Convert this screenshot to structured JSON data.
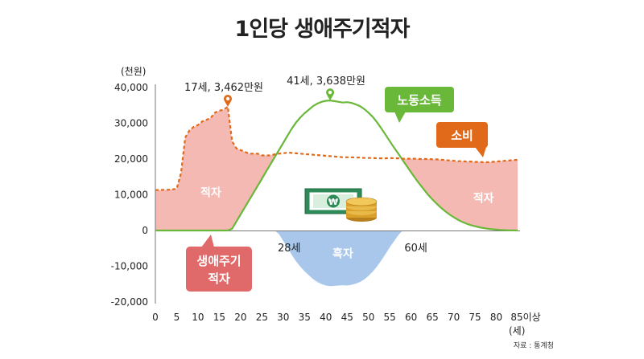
{
  "title": "1인당 생애주기적자",
  "chart_data": {
    "type": "line",
    "title": "1인당 생애주기적자",
    "y_unit_label": "(천원)",
    "x_unit_label": "(세)",
    "x_ticks": [
      "0",
      "5",
      "10",
      "15",
      "20",
      "25",
      "30",
      "35",
      "40",
      "45",
      "50",
      "55",
      "60",
      "65",
      "70",
      "75",
      "80",
      "85이상"
    ],
    "y_ticks": [
      "40,000",
      "30,000",
      "20,000",
      "10,000",
      "0",
      "-10,000",
      "-20,000"
    ],
    "ylim": [
      -20000,
      40000
    ],
    "xlim": [
      0,
      85
    ],
    "series": [
      {
        "name": "소비",
        "color": "#e06a1a",
        "x": [
          0,
          3,
          4,
          5,
          6,
          7,
          8,
          9,
          10,
          11,
          12,
          13,
          14,
          15,
          16,
          17,
          18,
          19,
          20,
          21,
          22,
          23,
          24,
          25,
          26,
          27,
          28,
          29,
          30,
          31,
          32,
          33,
          34,
          35,
          36,
          37,
          38,
          39,
          40,
          41,
          42,
          43,
          44,
          45,
          46,
          47,
          48,
          49,
          50,
          51,
          52,
          53,
          54,
          55,
          56,
          57,
          58,
          59,
          60,
          61,
          62,
          63,
          64,
          65,
          66,
          67,
          68,
          69,
          70,
          71,
          72,
          73,
          74,
          75,
          76,
          77,
          78,
          79,
          80,
          81,
          82,
          83,
          84,
          85
        ],
        "y": [
          11300,
          11400,
          11500,
          11700,
          16000,
          26000,
          28000,
          29000,
          29500,
          30500,
          31000,
          31500,
          33000,
          33500,
          33800,
          34620,
          25000,
          23000,
          22500,
          22000,
          21500,
          21500,
          21500,
          21000,
          21000,
          21000,
          21300,
          21500,
          21600,
          21800,
          21700,
          21600,
          21500,
          21400,
          21300,
          21200,
          21100,
          21000,
          20900,
          20800,
          20700,
          20600,
          20500,
          20500,
          20500,
          20400,
          20400,
          20300,
          20300,
          20300,
          20200,
          20200,
          20200,
          20300,
          20200,
          20200,
          20100,
          20100,
          20100,
          20100,
          20000,
          20000,
          20000,
          19900,
          19900,
          19800,
          19700,
          19600,
          19500,
          19400,
          19400,
          19300,
          19300,
          19200,
          19200,
          19100,
          19100,
          19200,
          19300,
          19400,
          19500,
          19600,
          19700,
          19800
        ]
      },
      {
        "name": "노동소득",
        "color": "#6ab83a",
        "x": [
          0,
          5,
          10,
          15,
          17,
          18,
          19,
          20,
          21,
          22,
          23,
          24,
          25,
          26,
          27,
          28,
          29,
          30,
          31,
          32,
          33,
          34,
          35,
          36,
          37,
          38,
          39,
          40,
          41,
          42,
          43,
          44,
          45,
          46,
          47,
          48,
          49,
          50,
          51,
          52,
          53,
          54,
          55,
          56,
          57,
          58,
          59,
          60,
          61,
          62,
          63,
          64,
          65,
          66,
          67,
          68,
          69,
          70,
          71,
          72,
          73,
          74,
          75,
          76,
          77,
          78,
          79,
          80,
          81,
          82,
          83,
          84,
          85
        ],
        "y": [
          0,
          0,
          0,
          0,
          0,
          500,
          2500,
          4500,
          6500,
          8500,
          10500,
          12500,
          14500,
          16500,
          18500,
          20500,
          22500,
          24500,
          26500,
          28500,
          30200,
          31600,
          32800,
          33800,
          34800,
          35500,
          36000,
          36300,
          36380,
          36200,
          36000,
          35800,
          35900,
          35700,
          35300,
          34800,
          34000,
          33000,
          31800,
          30300,
          28600,
          26800,
          25000,
          23200,
          21500,
          19700,
          18000,
          16300,
          14600,
          13000,
          11500,
          10000,
          8700,
          7500,
          6400,
          5400,
          4500,
          3700,
          3000,
          2400,
          1900,
          1500,
          1200,
          900,
          700,
          500,
          350,
          250,
          150,
          100,
          50,
          20,
          0
        ]
      }
    ],
    "annotations": [
      {
        "text": "17세, 3,462만원",
        "x": 17,
        "y": 34620,
        "series": "소비"
      },
      {
        "text": "41세, 3,638만원",
        "x": 41,
        "y": 36380,
        "series": "노동소득"
      },
      {
        "text": "28세",
        "x": 28,
        "y": 0
      },
      {
        "text": "60세",
        "x": 60,
        "y": 0
      }
    ],
    "regions": [
      {
        "label": "적자",
        "x": 13,
        "y": 9500
      },
      {
        "label": "흑자",
        "x": 44,
        "y": -7500
      },
      {
        "label": "적자",
        "x": 77,
        "y": 8000
      }
    ],
    "callouts": [
      {
        "label": "노동소득",
        "color": "#6ab83a"
      },
      {
        "label": "소비",
        "color": "#e06a1a"
      },
      {
        "lines": [
          "생애주기",
          "적자"
        ],
        "color": "#e06a6a"
      }
    ],
    "colors": {
      "deficit": "#f4b9b3",
      "surplus": "#a8c7ea"
    },
    "grid": false
  },
  "source": "자료 : 통계청"
}
